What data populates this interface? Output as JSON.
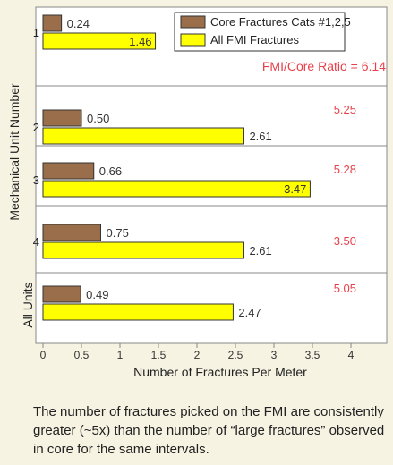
{
  "chart_data": {
    "type": "bar",
    "orientation": "horizontal",
    "xlabel": "Number of Fractures Per Meter",
    "ylabel": "Mechanical Unit Number",
    "xlim": [
      0,
      4
    ],
    "xticks": [
      "0",
      "0.5",
      "1",
      "1.5",
      "2",
      "2.5",
      "3",
      "3.5",
      "4"
    ],
    "categories": [
      "1",
      "2",
      "3",
      "4",
      "All Units"
    ],
    "series": [
      {
        "name": "Core Fractures Cats #1,2,5",
        "color": "#9a6e4a",
        "values": [
          0.24,
          0.5,
          0.66,
          0.75,
          0.49
        ],
        "labels": [
          "0.24",
          "0.50",
          "0.66",
          "0.75",
          "0.49"
        ]
      },
      {
        "name": "All FMI Fractures",
        "color": "#ffff00",
        "values": [
          1.46,
          2.61,
          3.47,
          2.61,
          2.47
        ],
        "labels": [
          "1.46",
          "2.61",
          "3.47",
          "2.61",
          "2.47"
        ]
      }
    ],
    "ratio_title": "FMI/Core Ratio = 6.14",
    "ratios": [
      "",
      "5.25",
      "5.28",
      "3.50",
      "5.05"
    ],
    "ratio_color": "#e8404a",
    "legend_position": "top-right"
  },
  "caption": "The number of fractures picked on the FMI are consistently greater (~5x) than the number of “large fractures” observed in core for the same intervals."
}
